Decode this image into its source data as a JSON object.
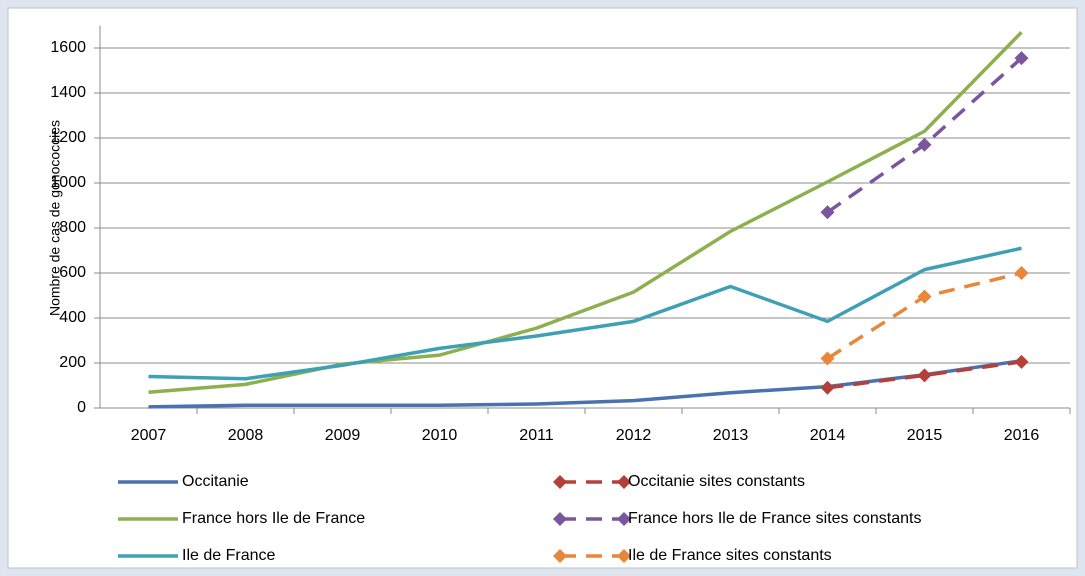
{
  "chart_data": {
    "type": "line",
    "y_label": "Nombre de cas de gonococcies",
    "categories": [
      "2007",
      "2008",
      "2009",
      "2010",
      "2011",
      "2012",
      "2013",
      "2014",
      "2015",
      "2016"
    ],
    "series": [
      {
        "name": "Occitanie",
        "color": "#4a72b0",
        "style": "solid",
        "marker": "none",
        "values": [
          5,
          12,
          12,
          12,
          18,
          33,
          68,
          95,
          148,
          210
        ]
      },
      {
        "name": "Occitanie sites constants",
        "color": "#b5403a",
        "style": "dashed",
        "marker": "diamond",
        "values": [
          null,
          null,
          null,
          null,
          null,
          null,
          null,
          90,
          145,
          205
        ]
      },
      {
        "name": "France hors Ile de France",
        "color": "#8db04e",
        "style": "solid",
        "marker": "none",
        "values": [
          70,
          105,
          195,
          235,
          355,
          515,
          785,
          1005,
          1230,
          1670
        ]
      },
      {
        "name": "France hors Ile de France sites constants",
        "color": "#7a569c",
        "style": "dashed",
        "marker": "diamond",
        "values": [
          null,
          null,
          null,
          null,
          null,
          null,
          null,
          870,
          1170,
          1555
        ]
      },
      {
        "name": " Ile de France",
        "color": "#3fa0b5",
        "style": "solid",
        "marker": "none",
        "values": [
          140,
          130,
          190,
          265,
          320,
          385,
          540,
          385,
          615,
          710
        ]
      },
      {
        "name": "Ile de France sites constants",
        "color": "#e8863a",
        "style": "dashed",
        "marker": "diamond",
        "values": [
          null,
          null,
          null,
          null,
          null,
          null,
          null,
          220,
          495,
          600
        ]
      }
    ],
    "ylim": [
      0,
      1700
    ],
    "yticks": [
      0,
      200,
      400,
      600,
      800,
      1000,
      1200,
      1400,
      1600
    ],
    "grid": true
  }
}
